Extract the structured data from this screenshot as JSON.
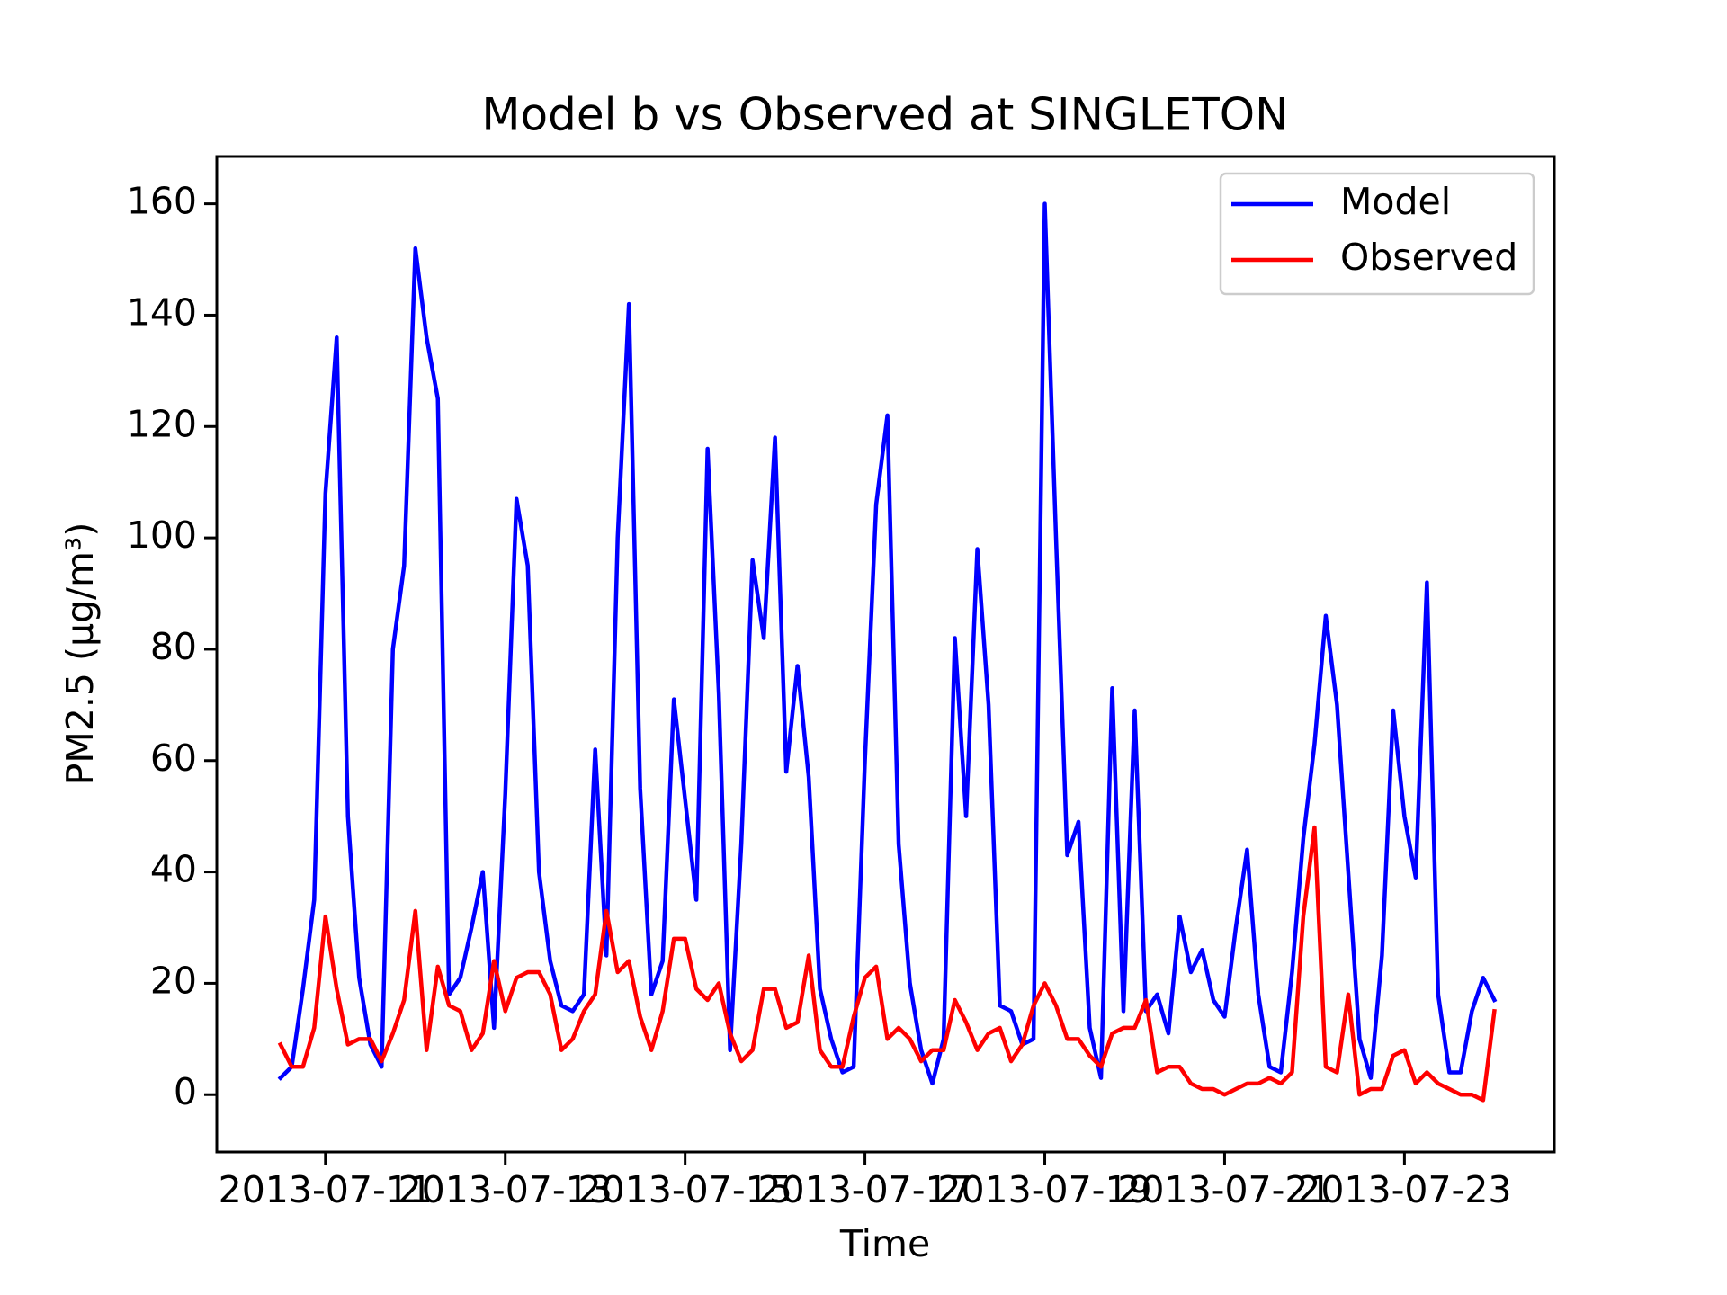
{
  "chart_data": {
    "type": "line",
    "title": "Model b vs Observed at SINGLETON",
    "x_label": "Time",
    "y_label": "PM2.5 (μg/m³)",
    "x": [
      "2013-07-10 12:00",
      "2013-07-10 15:00",
      "2013-07-10 18:00",
      "2013-07-10 21:00",
      "2013-07-11 00:00",
      "2013-07-11 03:00",
      "2013-07-11 06:00",
      "2013-07-11 09:00",
      "2013-07-11 12:00",
      "2013-07-11 15:00",
      "2013-07-11 18:00",
      "2013-07-11 21:00",
      "2013-07-12 00:00",
      "2013-07-12 03:00",
      "2013-07-12 06:00",
      "2013-07-12 09:00",
      "2013-07-12 12:00",
      "2013-07-12 15:00",
      "2013-07-12 18:00",
      "2013-07-12 21:00",
      "2013-07-13 00:00",
      "2013-07-13 03:00",
      "2013-07-13 06:00",
      "2013-07-13 09:00",
      "2013-07-13 12:00",
      "2013-07-13 15:00",
      "2013-07-13 18:00",
      "2013-07-13 21:00",
      "2013-07-14 00:00",
      "2013-07-14 03:00",
      "2013-07-14 06:00",
      "2013-07-14 09:00",
      "2013-07-14 12:00",
      "2013-07-14 15:00",
      "2013-07-14 18:00",
      "2013-07-14 21:00",
      "2013-07-15 00:00",
      "2013-07-15 03:00",
      "2013-07-15 06:00",
      "2013-07-15 09:00",
      "2013-07-15 12:00",
      "2013-07-15 15:00",
      "2013-07-15 18:00",
      "2013-07-15 21:00",
      "2013-07-16 00:00",
      "2013-07-16 03:00",
      "2013-07-16 06:00",
      "2013-07-16 09:00",
      "2013-07-16 12:00",
      "2013-07-16 15:00",
      "2013-07-16 18:00",
      "2013-07-16 21:00",
      "2013-07-17 00:00",
      "2013-07-17 03:00",
      "2013-07-17 06:00",
      "2013-07-17 09:00",
      "2013-07-17 12:00",
      "2013-07-17 15:00",
      "2013-07-17 18:00",
      "2013-07-17 21:00",
      "2013-07-18 00:00",
      "2013-07-18 03:00",
      "2013-07-18 06:00",
      "2013-07-18 09:00",
      "2013-07-18 12:00",
      "2013-07-18 15:00",
      "2013-07-18 18:00",
      "2013-07-18 21:00",
      "2013-07-19 00:00",
      "2013-07-19 03:00",
      "2013-07-19 06:00",
      "2013-07-19 09:00",
      "2013-07-19 12:00",
      "2013-07-19 15:00",
      "2013-07-19 18:00",
      "2013-07-19 21:00",
      "2013-07-20 00:00",
      "2013-07-20 03:00",
      "2013-07-20 06:00",
      "2013-07-20 09:00",
      "2013-07-20 12:00",
      "2013-07-20 15:00",
      "2013-07-20 18:00",
      "2013-07-20 21:00",
      "2013-07-21 00:00",
      "2013-07-21 03:00",
      "2013-07-21 06:00",
      "2013-07-21 09:00",
      "2013-07-21 12:00",
      "2013-07-21 15:00",
      "2013-07-21 18:00",
      "2013-07-21 21:00",
      "2013-07-22 00:00",
      "2013-07-22 03:00",
      "2013-07-22 06:00",
      "2013-07-22 09:00",
      "2013-07-22 12:00",
      "2013-07-22 15:00",
      "2013-07-22 18:00",
      "2013-07-22 21:00",
      "2013-07-23 00:00",
      "2013-07-23 03:00",
      "2013-07-23 06:00",
      "2013-07-23 09:00",
      "2013-07-23 12:00",
      "2013-07-23 15:00",
      "2013-07-23 18:00",
      "2013-07-23 21:00",
      "2013-07-24 00:00"
    ],
    "series": [
      {
        "name": "Model",
        "color": "#0000ff",
        "values": [
          3,
          5,
          19,
          35,
          108,
          136,
          50,
          21,
          9,
          5,
          80,
          95,
          152,
          136,
          125,
          18,
          21,
          30,
          40,
          12,
          54,
          107,
          95,
          40,
          24,
          16,
          15,
          18,
          62,
          25,
          100,
          142,
          55,
          18,
          24,
          71,
          53,
          35,
          116,
          72,
          8,
          45,
          96,
          82,
          118,
          58,
          77,
          57,
          19,
          10,
          4,
          5,
          60,
          106,
          122,
          45,
          20,
          8,
          2,
          10,
          82,
          50,
          98,
          70,
          16,
          15,
          9,
          10,
          160,
          100,
          43,
          49,
          12,
          3,
          73,
          15,
          69,
          15,
          18,
          11,
          32,
          22,
          26,
          17,
          14,
          30,
          44,
          18,
          5,
          4,
          22,
          46,
          63,
          86,
          70,
          40,
          10,
          3,
          25,
          69,
          50,
          39,
          92,
          18,
          4,
          4,
          15,
          21,
          17
        ]
      },
      {
        "name": "Observed",
        "color": "#ff0000",
        "values": [
          9,
          5,
          5,
          12,
          32,
          19,
          9,
          10,
          10,
          6,
          11,
          17,
          33,
          8,
          23,
          16,
          15,
          8,
          11,
          24,
          15,
          21,
          22,
          22,
          18,
          8,
          10,
          15,
          18,
          33,
          22,
          24,
          14,
          8,
          15,
          28,
          28,
          19,
          17,
          20,
          11,
          6,
          8,
          19,
          19,
          12,
          13,
          25,
          8,
          5,
          5,
          14,
          21,
          23,
          10,
          12,
          10,
          6,
          8,
          8,
          17,
          13,
          8,
          11,
          12,
          6,
          9,
          16,
          20,
          16,
          10,
          10,
          7,
          5,
          11,
          12,
          12,
          17,
          4,
          5,
          5,
          2,
          1,
          1,
          0,
          1,
          2,
          2,
          3,
          2,
          4,
          32,
          48,
          5,
          4,
          18,
          0,
          1,
          1,
          7,
          8,
          2,
          4,
          2,
          1,
          0,
          0,
          -1,
          15
        ]
      }
    ],
    "xlim": [
      "2013-07-09 19:00",
      "2013-07-24 16:00"
    ],
    "xticks": [
      "2013-07-11",
      "2013-07-13",
      "2013-07-15",
      "2013-07-17",
      "2013-07-19",
      "2013-07-21",
      "2013-07-23"
    ],
    "ylim": [
      -10.3,
      168.5
    ],
    "yticks": [
      0,
      20,
      40,
      60,
      80,
      100,
      120,
      140,
      160
    ],
    "grid": false,
    "legend": "upper right"
  }
}
